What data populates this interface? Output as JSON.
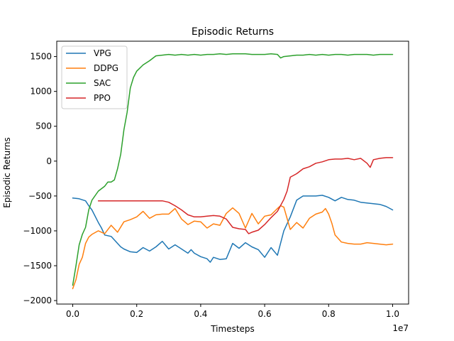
{
  "chart_data": {
    "type": "line",
    "title": "Episodic Returns",
    "xlabel": "Timesteps",
    "ylabel": "Episodic Returns",
    "x_offset_label": "1e7",
    "xlim": [
      -0.05,
      1.05
    ],
    "ylim": [
      -2050,
      1720
    ],
    "xticks": [
      0.0,
      0.2,
      0.4,
      0.6,
      0.8,
      1.0
    ],
    "xtick_labels": [
      "0.0",
      "0.2",
      "0.4",
      "0.6",
      "0.8",
      "1.0"
    ],
    "yticks": [
      -2000,
      -1500,
      -1000,
      -500,
      0,
      500,
      1000,
      1500
    ],
    "ytick_labels": [
      "−2000",
      "−1500",
      "−1000",
      "−500",
      "0",
      "500",
      "1000",
      "1500"
    ],
    "grid": false,
    "legend_position": "top-left",
    "series": [
      {
        "name": "VPG",
        "color": "#1f77b4",
        "x": [
          0.0,
          0.02,
          0.04,
          0.05,
          0.06,
          0.08,
          0.09,
          0.1,
          0.12,
          0.14,
          0.15,
          0.16,
          0.18,
          0.2,
          0.22,
          0.24,
          0.26,
          0.28,
          0.3,
          0.32,
          0.34,
          0.36,
          0.37,
          0.38,
          0.4,
          0.42,
          0.43,
          0.44,
          0.46,
          0.48,
          0.5,
          0.52,
          0.54,
          0.56,
          0.58,
          0.6,
          0.62,
          0.64,
          0.66,
          0.68,
          0.7,
          0.72,
          0.74,
          0.76,
          0.78,
          0.8,
          0.82,
          0.84,
          0.86,
          0.88,
          0.9,
          0.92,
          0.94,
          0.96,
          0.98,
          1.0
        ],
        "y": [
          -530,
          -540,
          -570,
          -640,
          -700,
          -880,
          -960,
          -1060,
          -1080,
          -1180,
          -1230,
          -1260,
          -1300,
          -1310,
          -1240,
          -1290,
          -1230,
          -1150,
          -1260,
          -1200,
          -1260,
          -1320,
          -1270,
          -1320,
          -1370,
          -1400,
          -1450,
          -1380,
          -1410,
          -1400,
          -1180,
          -1250,
          -1170,
          -1230,
          -1270,
          -1380,
          -1240,
          -1350,
          -1000,
          -800,
          -560,
          -500,
          -500,
          -500,
          -490,
          -520,
          -570,
          -520,
          -550,
          -560,
          -590,
          -600,
          -610,
          -620,
          -650,
          -700
        ]
      },
      {
        "name": "DDPG",
        "color": "#ff7f0e",
        "x": [
          0.0,
          0.01,
          0.02,
          0.03,
          0.04,
          0.05,
          0.06,
          0.08,
          0.1,
          0.12,
          0.14,
          0.16,
          0.18,
          0.2,
          0.22,
          0.24,
          0.26,
          0.28,
          0.3,
          0.32,
          0.34,
          0.36,
          0.38,
          0.4,
          0.42,
          0.44,
          0.46,
          0.48,
          0.5,
          0.52,
          0.54,
          0.56,
          0.58,
          0.6,
          0.62,
          0.64,
          0.65,
          0.66,
          0.68,
          0.7,
          0.72,
          0.74,
          0.76,
          0.78,
          0.79,
          0.8,
          0.81,
          0.82,
          0.84,
          0.86,
          0.88,
          0.9,
          0.92,
          0.94,
          0.96,
          0.98,
          1.0
        ],
        "y": [
          -1830,
          -1700,
          -1480,
          -1380,
          -1180,
          -1090,
          -1050,
          -1000,
          -1040,
          -920,
          -1020,
          -870,
          -840,
          -800,
          -720,
          -820,
          -770,
          -760,
          -760,
          -680,
          -830,
          -910,
          -860,
          -870,
          -960,
          -900,
          -920,
          -750,
          -670,
          -750,
          -960,
          -750,
          -900,
          -790,
          -770,
          -680,
          -640,
          -660,
          -980,
          -880,
          -960,
          -820,
          -760,
          -730,
          -680,
          -760,
          -890,
          -1060,
          -1160,
          -1180,
          -1190,
          -1190,
          -1170,
          -1180,
          -1190,
          -1200,
          -1190
        ]
      },
      {
        "name": "SAC",
        "color": "#2ca02c",
        "x": [
          0.0,
          0.01,
          0.02,
          0.03,
          0.04,
          0.05,
          0.06,
          0.08,
          0.1,
          0.11,
          0.12,
          0.13,
          0.14,
          0.15,
          0.16,
          0.17,
          0.18,
          0.19,
          0.2,
          0.22,
          0.24,
          0.26,
          0.28,
          0.3,
          0.32,
          0.34,
          0.36,
          0.38,
          0.4,
          0.42,
          0.44,
          0.46,
          0.48,
          0.5,
          0.52,
          0.54,
          0.56,
          0.58,
          0.6,
          0.62,
          0.64,
          0.65,
          0.66,
          0.68,
          0.7,
          0.72,
          0.74,
          0.76,
          0.78,
          0.8,
          0.82,
          0.84,
          0.86,
          0.88,
          0.9,
          0.92,
          0.94,
          0.96,
          0.98,
          1.0
        ],
        "y": [
          -1780,
          -1500,
          -1200,
          -1050,
          -950,
          -700,
          -560,
          -430,
          -360,
          -300,
          -300,
          -270,
          -110,
          100,
          450,
          700,
          1050,
          1200,
          1290,
          1380,
          1440,
          1510,
          1520,
          1530,
          1520,
          1530,
          1520,
          1530,
          1520,
          1530,
          1530,
          1540,
          1530,
          1540,
          1540,
          1540,
          1530,
          1530,
          1530,
          1540,
          1530,
          1480,
          1500,
          1510,
          1520,
          1520,
          1530,
          1520,
          1530,
          1520,
          1530,
          1530,
          1520,
          1530,
          1530,
          1530,
          1520,
          1530,
          1530,
          1530
        ]
      },
      {
        "name": "PPO",
        "color": "#d62728",
        "x": [
          0.08,
          0.1,
          0.15,
          0.2,
          0.25,
          0.28,
          0.3,
          0.32,
          0.34,
          0.36,
          0.38,
          0.4,
          0.42,
          0.44,
          0.46,
          0.48,
          0.5,
          0.52,
          0.54,
          0.55,
          0.56,
          0.58,
          0.6,
          0.62,
          0.64,
          0.66,
          0.67,
          0.68,
          0.7,
          0.72,
          0.74,
          0.76,
          0.78,
          0.8,
          0.82,
          0.84,
          0.86,
          0.88,
          0.9,
          0.92,
          0.93,
          0.94,
          0.96,
          0.98,
          1.0
        ],
        "y": [
          -570,
          -570,
          -570,
          -570,
          -570,
          -570,
          -590,
          -640,
          -700,
          -770,
          -800,
          -800,
          -790,
          -780,
          -790,
          -830,
          -950,
          -970,
          -980,
          -1040,
          -1020,
          -990,
          -910,
          -810,
          -720,
          -550,
          -430,
          -230,
          -180,
          -110,
          -80,
          -30,
          -10,
          20,
          30,
          30,
          40,
          20,
          40,
          -30,
          -90,
          20,
          40,
          50,
          50
        ]
      }
    ]
  }
}
